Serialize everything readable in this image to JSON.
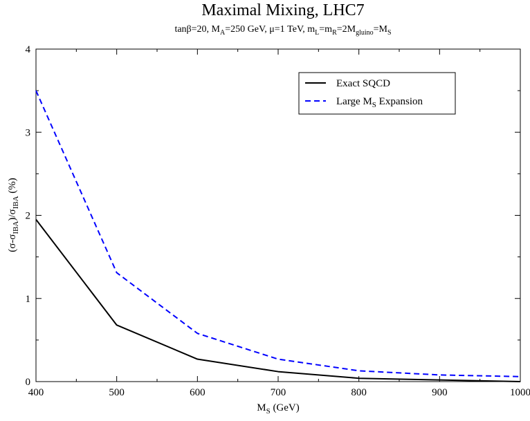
{
  "chart_data": {
    "type": "line",
    "title": "Maximal Mixing, LHC7",
    "subtitle": {
      "tanb": "tanβ=20, M",
      "A_sub": "A",
      "MA_mu": "=250 GeV, μ=1 TeV, m",
      "L_sub": "L",
      "eq1": "=m",
      "R_sub": "R",
      "eq2": "=2M",
      "gluino_sub": "gluino",
      "eq3": "=M",
      "S_sub": "S"
    },
    "xlabel": {
      "main": "M",
      "sub": "S",
      "rest": " (GeV)"
    },
    "ylabel": {
      "p1": "(σ-σ",
      "sub1": "IBA",
      "p2": ")/σ",
      "sub2": "IBA",
      "p3": " (%)"
    },
    "xlim": [
      400,
      1000
    ],
    "ylim": [
      0,
      4
    ],
    "x_ticks": [
      "400",
      "500",
      "600",
      "700",
      "800",
      "900",
      "1000"
    ],
    "y_ticks": [
      "0",
      "1",
      "2",
      "3",
      "4"
    ],
    "grid": false,
    "legend_position": "top-right",
    "x": [
      400,
      500,
      600,
      700,
      800,
      900,
      1000
    ],
    "series": [
      {
        "name": "Exact SQCD",
        "values": [
          1.95,
          0.68,
          0.27,
          0.12,
          0.04,
          0.02,
          0.0
        ],
        "color": "#000000",
        "style": "solid"
      },
      {
        "name_main": "Large M",
        "name_sub": "S",
        "name_rest": " Expansion",
        "values": [
          3.5,
          1.31,
          0.58,
          0.27,
          0.13,
          0.08,
          0.06
        ],
        "color": "#0000ff",
        "style": "dashed"
      }
    ]
  }
}
